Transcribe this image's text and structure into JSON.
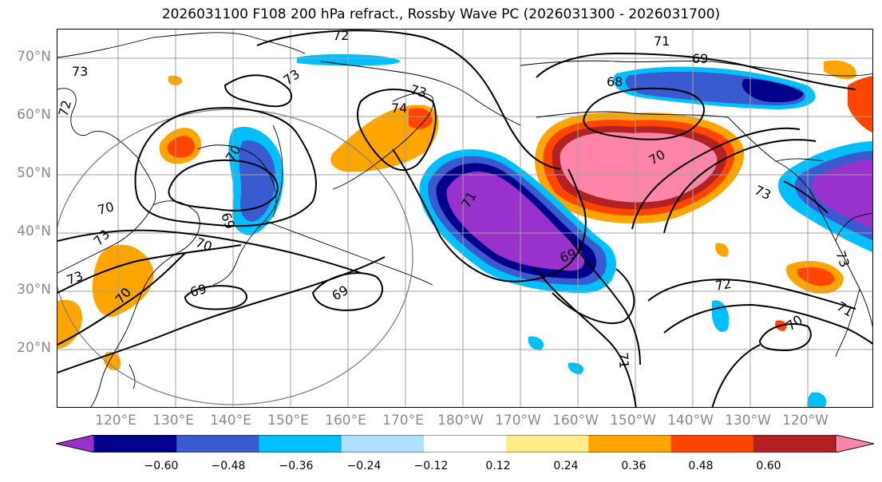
{
  "title": "2026031100 F108 200 hPa refract., Rossby Wave PC (2026031300 - 2026031700)",
  "lat_labels": [
    "70°N",
    "60°N",
    "50°N",
    "40°N",
    "30°N",
    "20°N"
  ],
  "lon_labels": [
    "120°E",
    "130°E",
    "140°E",
    "150°E",
    "160°E",
    "170°E",
    "180°W",
    "170°W",
    "160°W",
    "150°W",
    "140°W",
    "130°W",
    "120°W"
  ],
  "contour_labels": [
    "72",
    "73",
    "73",
    "72",
    "74",
    "70",
    "69",
    "68",
    "73",
    "70",
    "73",
    "71",
    "69",
    "69",
    "70",
    "73",
    "70",
    "69",
    "71",
    "72",
    "70",
    "71",
    "73",
    "70",
    "69",
    "73",
    "71"
  ],
  "colorbar": {
    "colors": [
      "#9932cc",
      "#00008b",
      "#3a5bd0",
      "#00bfff",
      "#b0e0ff",
      "#ffffff",
      "#ffeb8a",
      "#ffa500",
      "#ff4500",
      "#b22222",
      "#ff85a8"
    ],
    "ticks": [
      "−0.60",
      "−0.48",
      "−0.36",
      "−0.24",
      "−0.12",
      "0.12",
      "0.24",
      "0.36",
      "0.48",
      "0.60"
    ]
  }
}
